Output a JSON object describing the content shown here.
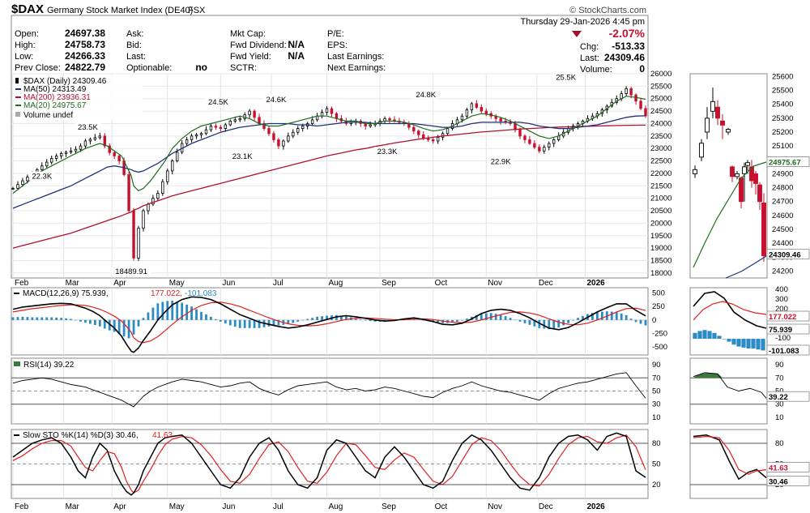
{
  "header": {
    "symbol": "$DAX",
    "name": "Germany Stock Market Index (DE40)",
    "exchange": "FSX",
    "watermark": "© StockCharts.com",
    "date": "Thursday  29-Jan-2026  4:45 pm",
    "change_pct": "-2.07%",
    "change_pct_color": "#c8102e",
    "chg_label": "Chg:",
    "chg_value": "-513.33",
    "last_label": "Last:",
    "last_value": "24309.46",
    "volume_label": "Volume:",
    "volume_value": "0",
    "stats": [
      {
        "label": "Open:",
        "value": "24697.38"
      },
      {
        "label": "High:",
        "value": "24758.73"
      },
      {
        "label": "Low:",
        "value": "24266.33"
      },
      {
        "label": "Prev Close:",
        "value": "24822.79"
      }
    ],
    "col2": [
      {
        "label": "Ask:",
        "value": ""
      },
      {
        "label": "Bid:",
        "value": ""
      },
      {
        "label": "Last:",
        "value": ""
      },
      {
        "label": "Optionable:",
        "value": "no"
      }
    ],
    "col3": [
      {
        "label": "Mkt Cap:",
        "value": ""
      },
      {
        "label": "Fwd Dividend:",
        "value": "N/A"
      },
      {
        "label": "Fwd Yield:",
        "value": "N/A"
      },
      {
        "label": "SCTR:",
        "value": ""
      }
    ],
    "col4": [
      {
        "label": "P/E:",
        "value": ""
      },
      {
        "label": "EPS:",
        "value": ""
      },
      {
        "label": "Last Earnings:",
        "value": ""
      },
      {
        "label": "Next Earnings:",
        "value": ""
      }
    ]
  },
  "legend": {
    "price": "$DAX (Daily) 24309.46",
    "ma50": "MA(50) 24313.49",
    "ma200": "MA(200) 23936.31",
    "ma20": "MA(20) 24975.67",
    "volume": "Volume undef"
  },
  "colors": {
    "ma50": "#1f2f7a",
    "ma200": "#b0102e",
    "ma20": "#1e6b1e",
    "up": "#000000",
    "down": "#c8102e",
    "hist": "#2b8cc4",
    "rsi_fill": "#3a7a3a",
    "signal": "#e0201e"
  },
  "months": [
    "Feb",
    "Mar",
    "Apr",
    "May",
    "Jun",
    "Jul",
    "Aug",
    "Sep",
    "Oct",
    "Nov",
    "Dec",
    "2026"
  ],
  "chart_data": [
    {
      "type": "candlestick",
      "title": "$DAX (Daily)",
      "ylim": [
        17800,
        26000
      ],
      "yticks": [
        18000,
        18500,
        19000,
        19500,
        20000,
        20500,
        21000,
        21500,
        22000,
        22500,
        23000,
        23500,
        24000,
        24500,
        25000,
        25500,
        26000
      ],
      "ytick_labels": [
        "18000",
        "18500",
        "19000",
        "19500",
        "20000",
        "20500",
        "21000",
        "21500",
        "22000",
        "22500",
        "23000",
        "23500",
        "24000",
        "24500",
        "25000",
        "25500",
        "26000"
      ],
      "close_x": [
        0,
        4,
        8,
        12,
        16,
        20,
        24,
        27,
        30,
        33,
        36,
        39,
        42,
        45,
        47,
        49,
        50,
        52,
        54,
        57,
        60,
        63,
        66,
        70,
        74,
        78,
        82,
        86,
        90,
        94,
        98,
        102,
        106,
        110,
        114,
        118,
        122,
        126,
        130,
        134,
        138,
        142,
        146,
        150,
        154,
        158,
        162,
        166,
        170,
        174,
        178,
        182,
        186,
        190,
        194,
        198,
        202,
        206,
        210,
        214,
        218,
        222,
        226,
        230,
        234,
        238,
        242,
        246,
        250,
        254,
        258,
        262
      ],
      "close_y": [
        21400,
        21700,
        22000,
        22300,
        22600,
        22800,
        22900,
        23000,
        23300,
        23400,
        23500,
        22900,
        22700,
        22400,
        21500,
        19500,
        18600,
        19800,
        20500,
        20900,
        21200,
        21900,
        22500,
        23200,
        23500,
        23600,
        23900,
        23800,
        24100,
        24200,
        24500,
        24000,
        23600,
        23100,
        23500,
        23800,
        24000,
        24300,
        24600,
        24200,
        24000,
        24100,
        23900,
        24000,
        24200,
        24100,
        24000,
        23700,
        23400,
        23300,
        23600,
        24000,
        24300,
        24800,
        24500,
        24300,
        24100,
        24000,
        23500,
        23200,
        22900,
        23200,
        23500,
        23800,
        24000,
        24200,
        24400,
        24700,
        25000,
        25400,
        24900,
        24310
      ],
      "ma50": [
        20600,
        20750,
        20900,
        21050,
        21200,
        21350,
        21500,
        21650,
        21800,
        21950,
        22100,
        22250,
        22300,
        22250,
        22200,
        22150,
        22100,
        22050,
        22100,
        22250,
        22400,
        22600,
        22800,
        23000,
        23200,
        23350,
        23500,
        23650,
        23750,
        23850,
        23900,
        23950,
        24000,
        24000,
        24000,
        23950,
        23950,
        23900,
        23950,
        24000,
        24050,
        24050,
        24050,
        24000,
        24000,
        24000,
        24000,
        24000,
        23950,
        23900,
        23850,
        23850,
        23900,
        24000,
        24050,
        24050,
        24050,
        24050,
        24050,
        24000,
        23900,
        23850,
        23800,
        23800,
        23850,
        23900,
        23950,
        24050,
        24150,
        24250,
        24300,
        24310
      ],
      "ma200": [
        19000,
        19100,
        19200,
        19300,
        19400,
        19500,
        19600,
        19700,
        19800,
        19900,
        20000,
        20100,
        20200,
        20300,
        20380,
        20450,
        20520,
        20600,
        20700,
        20800,
        20900,
        21000,
        21100,
        21200,
        21300,
        21400,
        21500,
        21600,
        21700,
        21800,
        21900,
        22000,
        22100,
        22200,
        22300,
        22400,
        22500,
        22600,
        22700,
        22780,
        22860,
        22940,
        23000,
        23080,
        23150,
        23220,
        23280,
        23340,
        23400,
        23450,
        23500,
        23540,
        23580,
        23620,
        23660,
        23690,
        23720,
        23750,
        23780,
        23800,
        23820,
        23840,
        23860,
        23870,
        23880,
        23890,
        23900,
        23910,
        23920,
        23930,
        23935,
        23936
      ],
      "ma20": [
        21200,
        21500,
        21800,
        22100,
        22300,
        22500,
        22700,
        22850,
        23000,
        23100,
        23200,
        23100,
        22900,
        22700,
        22300,
        21900,
        21500,
        21300,
        21400,
        21700,
        22100,
        22500,
        23000,
        23400,
        23700,
        23900,
        24000,
        24100,
        24200,
        24300,
        24200,
        24000,
        23900,
        23900,
        24000,
        24100,
        24200,
        24300,
        24300,
        24200,
        24100,
        24100,
        24000,
        24000,
        24100,
        24100,
        24050,
        23950,
        23800,
        23700,
        23750,
        23900,
        24100,
        24300,
        24400,
        24350,
        24250,
        24100,
        23900,
        23700,
        23500,
        23400,
        23500,
        23700,
        23900,
        24100,
        24300,
        24600,
        24900,
        25100,
        25050,
        24976
      ],
      "labels": [
        {
          "x": 12,
          "text": "22.3K"
        },
        {
          "x": 31,
          "text": "23.5K"
        },
        {
          "x": 49,
          "text": "18489.91"
        },
        {
          "x": 85,
          "text": "24.5K"
        },
        {
          "x": 95,
          "text": "23.1K"
        },
        {
          "x": 109,
          "text": "24.6K"
        },
        {
          "x": 155,
          "text": "23.3K"
        },
        {
          "x": 171,
          "text": "24.8K"
        },
        {
          "x": 202,
          "text": "22.9K"
        },
        {
          "x": 229,
          "text": "25.5K"
        }
      ],
      "label_y": [
        22300,
        23500,
        18489.91,
        24500,
        23100,
        24600,
        23300,
        24800,
        22900,
        25500
      ]
    },
    {
      "type": "line",
      "title": "MACD(12,26,9)",
      "legend_text": [
        "MACD(12,26,9) 75.939,",
        "177.022,",
        "-101.083"
      ],
      "ylim": [
        -650,
        600
      ],
      "yticks": [
        -500,
        -250,
        0,
        250,
        500
      ],
      "ytick_labels": [
        "-500",
        "-250",
        "0",
        "250",
        "500"
      ],
      "macd": [
        200,
        240,
        260,
        280,
        300,
        310,
        300,
        260,
        220,
        160,
        80,
        -40,
        -150,
        -300,
        -450,
        -580,
        -600,
        -520,
        -380,
        -200,
        0,
        150,
        280,
        380,
        430,
        420,
        380,
        300,
        200,
        100,
        30,
        -40,
        -80,
        -120,
        -150,
        -130,
        -90,
        -40,
        10,
        60,
        80,
        60,
        30,
        0,
        -20,
        -10,
        20,
        40,
        10,
        -30,
        -80,
        -90,
        -60,
        20,
        120,
        180,
        200,
        180,
        120,
        40,
        -60,
        -150,
        -180,
        -140,
        -50,
        50,
        150,
        230,
        300,
        300,
        180,
        76
      ],
      "signal": [
        150,
        180,
        210,
        230,
        250,
        270,
        280,
        280,
        270,
        240,
        200,
        140,
        70,
        -20,
        -120,
        -230,
        -330,
        -400,
        -420,
        -390,
        -310,
        -200,
        -80,
        60,
        180,
        270,
        320,
        330,
        300,
        250,
        180,
        110,
        40,
        -20,
        -70,
        -100,
        -110,
        -100,
        -70,
        -30,
        10,
        30,
        40,
        30,
        15,
        5,
        5,
        15,
        20,
        10,
        -20,
        -40,
        -50,
        -40,
        0,
        50,
        100,
        140,
        150,
        130,
        90,
        20,
        -40,
        -80,
        -90,
        -60,
        0,
        70,
        150,
        210,
        220,
        177
      ]
    },
    {
      "type": "line",
      "title": "RSI(14)",
      "legend_text": "RSI(14) 39.22",
      "ylim": [
        0,
        100
      ],
      "yticks": [
        10,
        30,
        50,
        70,
        90
      ],
      "ytick_labels": [
        "10",
        "30",
        "50",
        "70",
        "90"
      ],
      "rsi": [
        62,
        66,
        68,
        70,
        68,
        64,
        60,
        58,
        56,
        52,
        48,
        44,
        40,
        36,
        32,
        28,
        26,
        34,
        42,
        50,
        56,
        60,
        64,
        68,
        66,
        64,
        60,
        56,
        58,
        62,
        64,
        54,
        48,
        44,
        52,
        58,
        60,
        62,
        64,
        56,
        52,
        54,
        50,
        52,
        56,
        54,
        50,
        46,
        42,
        40,
        48,
        54,
        58,
        64,
        58,
        54,
        50,
        48,
        44,
        40,
        36,
        46,
        54,
        58,
        62,
        64,
        68,
        72,
        76,
        78,
        58,
        39
      ]
    },
    {
      "type": "line",
      "title": "Slow STO %K(14) %D(3)",
      "legend_text": [
        "Slow STO %K(14) %D(3) 30.46,",
        "41.63"
      ],
      "ylim": [
        0,
        100
      ],
      "yticks": [
        20,
        50,
        80
      ],
      "ytick_labels": [
        "20",
        "50",
        "80"
      ],
      "k": [
        60,
        70,
        80,
        85,
        88,
        80,
        60,
        40,
        30,
        60,
        80,
        70,
        40,
        20,
        10,
        5,
        8,
        20,
        40,
        60,
        80,
        88,
        90,
        92,
        80,
        60,
        40,
        20,
        15,
        30,
        60,
        80,
        88,
        70,
        40,
        20,
        15,
        30,
        70,
        85,
        80,
        60,
        40,
        30,
        60,
        75,
        60,
        40,
        20,
        15,
        25,
        55,
        80,
        92,
        85,
        70,
        50,
        30,
        15,
        12,
        30,
        60,
        80,
        90,
        92,
        85,
        70,
        90,
        95,
        90,
        40,
        30.46
      ],
      "d": [
        55,
        62,
        72,
        80,
        84,
        84,
        76,
        60,
        45,
        40,
        55,
        68,
        65,
        45,
        25,
        12,
        8,
        12,
        25,
        42,
        62,
        78,
        86,
        90,
        88,
        78,
        62,
        42,
        25,
        22,
        35,
        58,
        78,
        82,
        68,
        45,
        25,
        22,
        38,
        62,
        80,
        78,
        62,
        45,
        42,
        56,
        66,
        60,
        42,
        25,
        20,
        32,
        55,
        78,
        88,
        84,
        70,
        50,
        32,
        20,
        18,
        35,
        58,
        78,
        88,
        90,
        82,
        80,
        88,
        92,
        75,
        41.63
      ]
    },
    {
      "type": "candlestick",
      "title": "Zoom inset",
      "ylim": [
        24150,
        25620
      ],
      "yticks": [
        24200,
        24300,
        24400,
        24500,
        24600,
        24700,
        24800,
        24900,
        25000,
        25100,
        25200,
        25300,
        25400,
        25500,
        25600
      ],
      "ytick_labels": [
        "24200",
        "24300",
        "24400",
        "24500",
        "24600",
        "24700",
        "24800",
        "24900",
        "25000",
        "25100",
        "25200",
        "25300",
        "25400",
        "25500",
        "25600"
      ],
      "ma20_label": "24975.67",
      "last_label": "24309.46",
      "macd_labels": [
        "177.022",
        "75.939",
        "-101.083"
      ],
      "macd_yticks": [
        "400",
        "300",
        "200",
        "100",
        "0",
        "-100"
      ],
      "rsi_labels": [
        "39.22"
      ],
      "rsi_yticks": [
        "90",
        "70",
        "50",
        "30",
        "10"
      ],
      "sto_labels": [
        "41.63",
        "30.46"
      ],
      "sto_yticks": [
        "80",
        "50",
        "20"
      ]
    }
  ]
}
